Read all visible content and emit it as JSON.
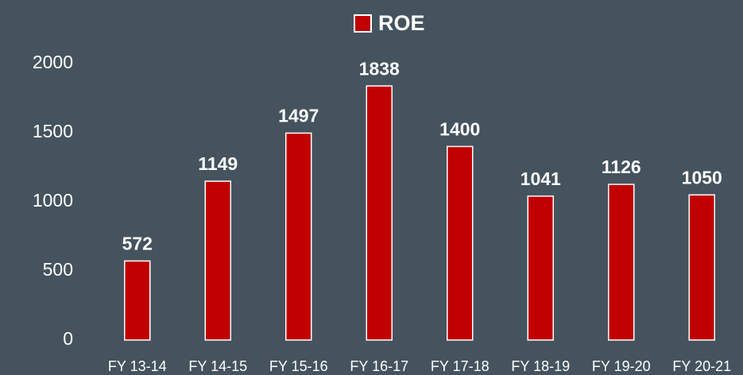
{
  "chart_data": {
    "type": "bar",
    "categories": [
      "FY 13-14",
      "FY 14-15",
      "FY 15-16",
      "FY 16-17",
      "FY 17-18",
      "FY 18-19",
      "FY 19-20",
      "FY 20-21"
    ],
    "series": [
      {
        "name": "ROE",
        "color": "#c00000",
        "values": [
          572,
          1149,
          1497,
          1838,
          1400,
          1041,
          1126,
          1050
        ]
      }
    ],
    "ylim": [
      0,
      2000
    ],
    "yticks": [
      0,
      500,
      1000,
      1500,
      2000
    ],
    "grid": false,
    "legend": "top"
  }
}
